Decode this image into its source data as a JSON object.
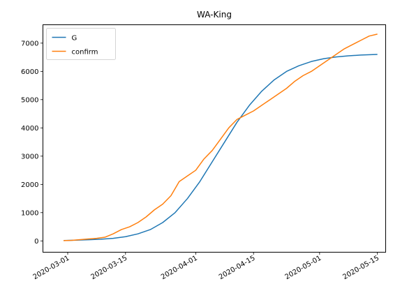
{
  "chart_data": {
    "type": "line",
    "title": "WA-King",
    "xlabel": "",
    "ylabel": "",
    "x_tick_labels": [
      "2020-03-01",
      "2020-03-15",
      "2020-04-01",
      "2020-04-15",
      "2020-05-01",
      "2020-05-15"
    ],
    "x_tick_dates": [
      "2020-03-01",
      "2020-03-15",
      "2020-04-01",
      "2020-04-15",
      "2020-05-01",
      "2020-05-15"
    ],
    "y_ticks": [
      0,
      1000,
      2000,
      3000,
      4000,
      5000,
      6000,
      7000
    ],
    "y_tick_labels": [
      "0",
      "1000",
      "2000",
      "3000",
      "4000",
      "5000",
      "6000",
      "7000"
    ],
    "xlim": [
      "2020-02-24",
      "2020-05-17"
    ],
    "ylim": [
      -400,
      7650
    ],
    "legend_position": "top-left",
    "grid": false,
    "series": [
      {
        "name": "G",
        "color": "#1f77b4",
        "x": [
          "2020-02-29",
          "2020-03-03",
          "2020-03-06",
          "2020-03-09",
          "2020-03-12",
          "2020-03-15",
          "2020-03-18",
          "2020-03-21",
          "2020-03-24",
          "2020-03-27",
          "2020-03-30",
          "2020-04-02",
          "2020-04-05",
          "2020-04-08",
          "2020-04-11",
          "2020-04-14",
          "2020-04-17",
          "2020-04-20",
          "2020-04-23",
          "2020-04-26",
          "2020-04-29",
          "2020-05-02",
          "2020-05-05",
          "2020-05-08",
          "2020-05-11",
          "2020-05-15"
        ],
        "values": [
          15,
          25,
          40,
          60,
          90,
          150,
          250,
          400,
          650,
          1000,
          1500,
          2100,
          2800,
          3500,
          4200,
          4800,
          5300,
          5700,
          6000,
          6200,
          6350,
          6450,
          6510,
          6550,
          6580,
          6600
        ]
      },
      {
        "name": "confirm",
        "color": "#ff7f0e",
        "x": [
          "2020-02-29",
          "2020-03-02",
          "2020-03-04",
          "2020-03-06",
          "2020-03-08",
          "2020-03-10",
          "2020-03-12",
          "2020-03-14",
          "2020-03-16",
          "2020-03-18",
          "2020-03-20",
          "2020-03-22",
          "2020-03-24",
          "2020-03-26",
          "2020-03-28",
          "2020-03-30",
          "2020-04-01",
          "2020-04-03",
          "2020-04-05",
          "2020-04-07",
          "2020-04-09",
          "2020-04-11",
          "2020-04-13",
          "2020-04-15",
          "2020-04-17",
          "2020-04-19",
          "2020-04-21",
          "2020-04-23",
          "2020-04-25",
          "2020-04-27",
          "2020-04-29",
          "2020-05-01",
          "2020-05-03",
          "2020-05-05",
          "2020-05-07",
          "2020-05-09",
          "2020-05-11",
          "2020-05-13",
          "2020-05-15"
        ],
        "values": [
          10,
          20,
          45,
          70,
          90,
          130,
          250,
          400,
          500,
          650,
          850,
          1100,
          1300,
          1600,
          2100,
          2300,
          2500,
          2900,
          3200,
          3600,
          4000,
          4300,
          4450,
          4600,
          4800,
          5000,
          5200,
          5400,
          5650,
          5850,
          6000,
          6200,
          6400,
          6600,
          6800,
          6950,
          7100,
          7250,
          7320
        ]
      }
    ]
  }
}
